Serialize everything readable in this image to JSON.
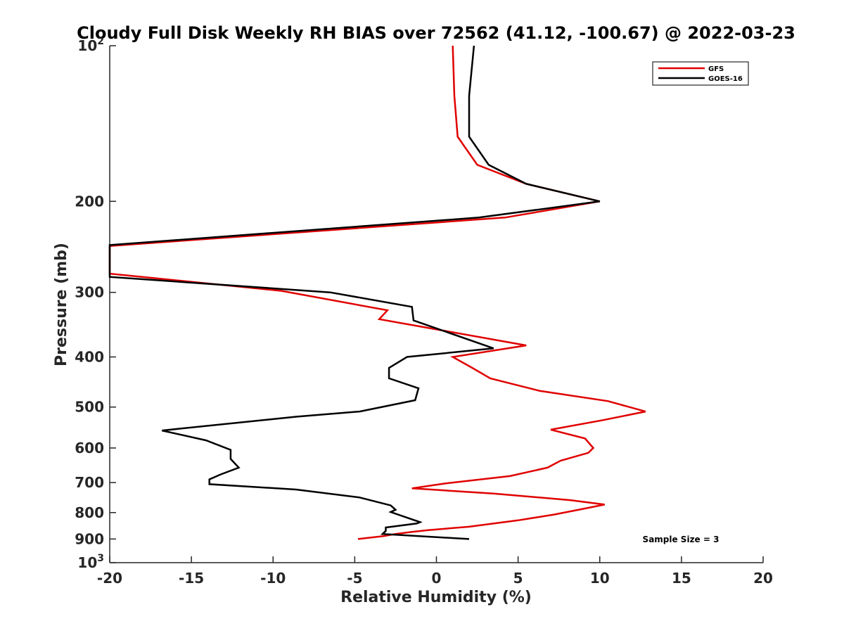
{
  "chart_data": {
    "type": "line",
    "title": "Cloudy Full Disk Weekly RH BIAS over 72562 (41.12, -100.67) @ 2022-03-23",
    "xlabel": "Relative Humidity (%)",
    "ylabel": "Pressure (mb)",
    "xlim": [
      -20,
      20
    ],
    "ylim": [
      100,
      1000
    ],
    "y_scale": "log",
    "y_reversed": true,
    "x_ticks": [
      -20,
      -15,
      -10,
      -5,
      0,
      5,
      10,
      15,
      20
    ],
    "x_tick_labels": [
      "-20",
      "-15",
      "-10",
      "-5",
      "0",
      "5",
      "10",
      "15",
      "20"
    ],
    "y_ticks": [
      {
        "value": 100,
        "base": "10",
        "exp": "2"
      },
      {
        "value": 200,
        "label": "200"
      },
      {
        "value": 300,
        "label": "300"
      },
      {
        "value": 400,
        "label": "400"
      },
      {
        "value": 500,
        "label": "500"
      },
      {
        "value": 600,
        "label": "600"
      },
      {
        "value": 700,
        "label": "700"
      },
      {
        "value": 800,
        "label": "800"
      },
      {
        "value": 900,
        "label": "900"
      },
      {
        "value": 1000,
        "base": "10",
        "exp": "3"
      }
    ],
    "grid": false,
    "legend_position": "top-right",
    "annotation": "Sample Size = 3",
    "series": [
      {
        "name": "GFS",
        "color": "#e00000",
        "points": [
          [
            1.0,
            100
          ],
          [
            1.1,
            125
          ],
          [
            1.3,
            150
          ],
          [
            2.5,
            170
          ],
          [
            5.5,
            185
          ],
          [
            10.0,
            200
          ],
          [
            4.2,
            215
          ],
          [
            -20.0,
            244
          ],
          [
            -20.0,
            276
          ],
          [
            -9.5,
            298
          ],
          [
            -3.0,
            325
          ],
          [
            -3.5,
            338
          ],
          [
            5.5,
            380
          ],
          [
            1.0,
            400
          ],
          [
            2.2,
            420
          ],
          [
            3.3,
            440
          ],
          [
            6.3,
            465
          ],
          [
            10.5,
            487
          ],
          [
            12.8,
            510
          ],
          [
            10.2,
            530
          ],
          [
            7.0,
            553
          ],
          [
            9.1,
            575
          ],
          [
            9.6,
            600
          ],
          [
            9.3,
            613
          ],
          [
            7.6,
            635
          ],
          [
            6.8,
            655
          ],
          [
            4.5,
            680
          ],
          [
            0.5,
            703
          ],
          [
            -1.5,
            718
          ],
          [
            3.5,
            735
          ],
          [
            8.2,
            757
          ],
          [
            10.3,
            772
          ],
          [
            8.9,
            788
          ],
          [
            7.2,
            807
          ],
          [
            5.0,
            828
          ],
          [
            2.0,
            852
          ],
          [
            -0.5,
            865
          ],
          [
            -1.5,
            872
          ],
          [
            -2.5,
            880
          ],
          [
            -3.2,
            888
          ],
          [
            -4.8,
            900
          ]
        ]
      },
      {
        "name": "GOES-16",
        "color": "#000000",
        "points": [
          [
            2.3,
            100
          ],
          [
            2.0,
            125
          ],
          [
            2.0,
            150
          ],
          [
            3.2,
            170
          ],
          [
            5.5,
            185
          ],
          [
            10.0,
            200
          ],
          [
            2.6,
            215
          ],
          [
            -20.0,
            243
          ],
          [
            -20.0,
            280
          ],
          [
            -6.5,
            300
          ],
          [
            -1.5,
            320
          ],
          [
            -1.4,
            340
          ],
          [
            3.5,
            385
          ],
          [
            -1.8,
            400
          ],
          [
            -2.9,
            420
          ],
          [
            -2.9,
            440
          ],
          [
            -1.1,
            460
          ],
          [
            -1.3,
            485
          ],
          [
            -4.7,
            510
          ],
          [
            -8.6,
            522
          ],
          [
            -16.8,
            555
          ],
          [
            -14.1,
            580
          ],
          [
            -12.6,
            605
          ],
          [
            -12.6,
            630
          ],
          [
            -12.1,
            655
          ],
          [
            -13.2,
            675
          ],
          [
            -13.9,
            690
          ],
          [
            -13.9,
            705
          ],
          [
            -8.6,
            722
          ],
          [
            -4.7,
            748
          ],
          [
            -2.8,
            775
          ],
          [
            -2.5,
            790
          ],
          [
            -2.8,
            798
          ],
          [
            -1.0,
            835
          ],
          [
            -1.2,
            840
          ],
          [
            -3.1,
            855
          ],
          [
            -3.1,
            868
          ],
          [
            -3.3,
            880
          ],
          [
            2.0,
            900
          ]
        ]
      }
    ]
  }
}
